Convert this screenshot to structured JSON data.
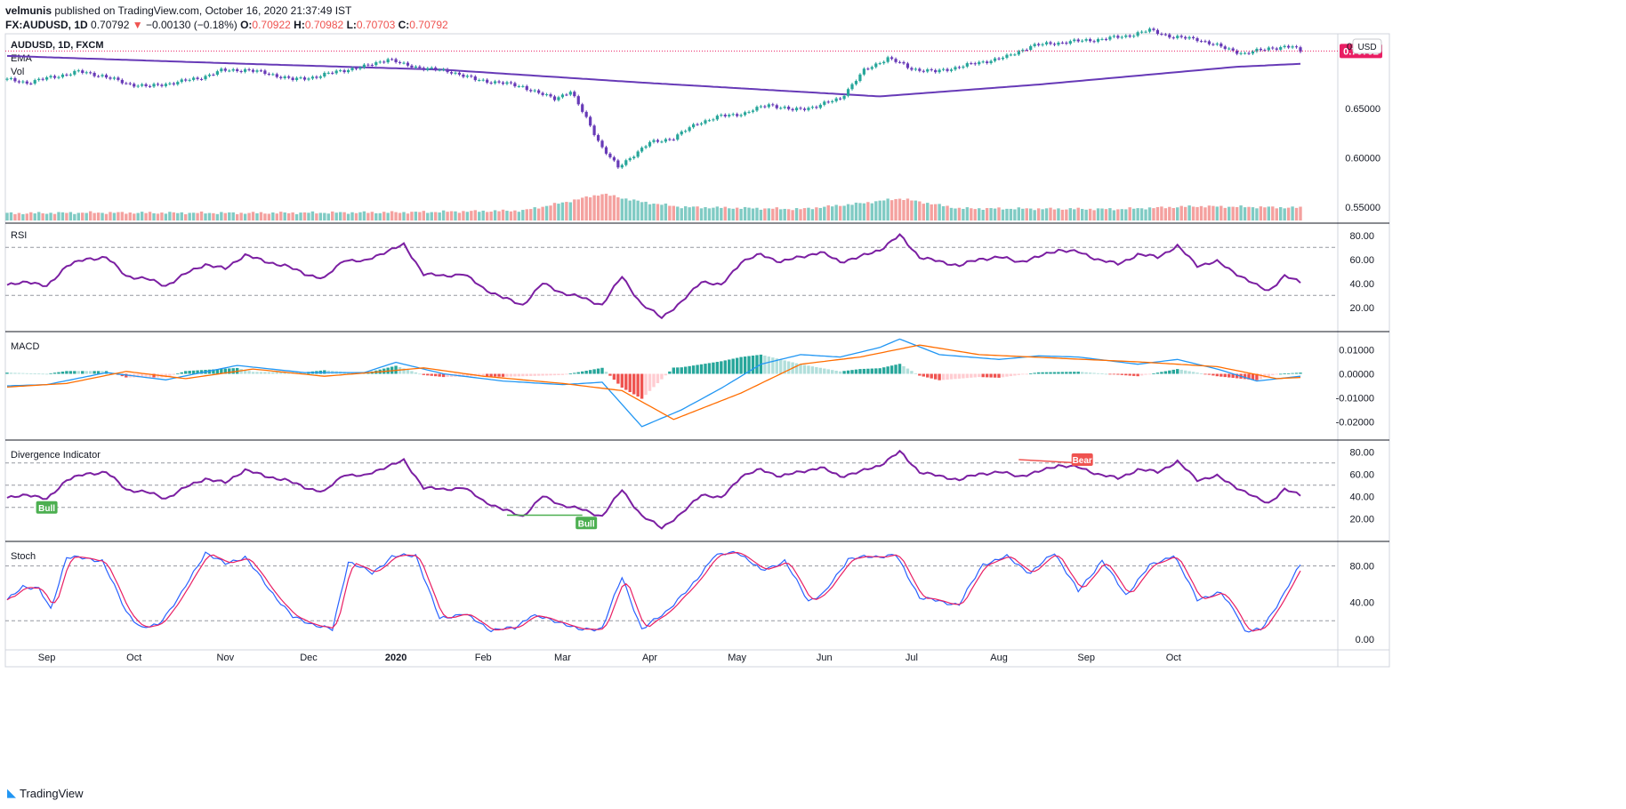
{
  "header": {
    "author": "velmunis",
    "published": "published on TradingView.com, October 16, 2020 21:37:49 IST",
    "symbol": "FX:AUDUSD, 1D",
    "price": "0.70792",
    "arrow": "▼",
    "change": "−0.00130 (−0.18%)",
    "o_label": "O:",
    "o_value": "0.70922",
    "h_label": "H:",
    "h_value": "0.70982",
    "l_label": "L:",
    "l_value": "0.70703",
    "c_label": "C:",
    "c_value": "0.70792"
  },
  "footer": {
    "brand": "TradingView"
  },
  "colors": {
    "up": "#26a69a",
    "down": "#ef5350",
    "ema": "#673ab7",
    "indicator": "#7b1fa2",
    "macd_line": "#2196f3",
    "signal_line": "#ff6d00",
    "stoch_k": "#2962ff",
    "stoch_d": "#e91e63",
    "last_price_bg": "#e91e63",
    "bull": "#4caf50",
    "bear": "#ef5350"
  },
  "chart_data": [
    {
      "type": "candlestick",
      "title": "AUDUSD, 1D, FXCM",
      "legend": [
        "EMA",
        "Vol"
      ],
      "currency": "USD",
      "last_price": "0.70792",
      "y_ticks": [
        "0.55000",
        "0.60000",
        "0.65000",
        "0.70792"
      ],
      "top_tick": "0",
      "ylim": [
        0.54,
        0.72
      ],
      "close_anchors": [
        [
          0,
          0.679
        ],
        [
          5,
          0.676
        ],
        [
          12,
          0.682
        ],
        [
          18,
          0.687
        ],
        [
          24,
          0.683
        ],
        [
          30,
          0.675
        ],
        [
          36,
          0.672
        ],
        [
          42,
          0.676
        ],
        [
          48,
          0.68
        ],
        [
          54,
          0.688
        ],
        [
          60,
          0.689
        ],
        [
          66,
          0.685
        ],
        [
          72,
          0.679
        ],
        [
          78,
          0.682
        ],
        [
          84,
          0.688
        ],
        [
          90,
          0.692
        ],
        [
          96,
          0.7
        ],
        [
          100,
          0.694
        ],
        [
          106,
          0.69
        ],
        [
          112,
          0.687
        ],
        [
          118,
          0.679
        ],
        [
          124,
          0.676
        ],
        [
          130,
          0.672
        ],
        [
          134,
          0.665
        ],
        [
          138,
          0.66
        ],
        [
          142,
          0.667
        ],
        [
          146,
          0.64
        ],
        [
          150,
          0.61
        ],
        [
          154,
          0.59
        ],
        [
          157,
          0.6
        ],
        [
          162,
          0.615
        ],
        [
          168,
          0.62
        ],
        [
          174,
          0.635
        ],
        [
          180,
          0.642
        ],
        [
          186,
          0.645
        ],
        [
          192,
          0.654
        ],
        [
          198,
          0.648
        ],
        [
          204,
          0.652
        ],
        [
          210,
          0.66
        ],
        [
          216,
          0.688
        ],
        [
          222,
          0.701
        ],
        [
          228,
          0.69
        ],
        [
          234,
          0.687
        ],
        [
          240,
          0.692
        ],
        [
          246,
          0.697
        ],
        [
          252,
          0.702
        ],
        [
          258,
          0.713
        ],
        [
          264,
          0.716
        ],
        [
          270,
          0.718
        ],
        [
          276,
          0.72
        ],
        [
          282,
          0.723
        ],
        [
          288,
          0.729
        ],
        [
          294,
          0.722
        ],
        [
          300,
          0.72
        ],
        [
          306,
          0.712
        ],
        [
          312,
          0.705
        ],
        [
          318,
          0.711
        ],
        [
          324,
          0.712
        ],
        [
          326,
          0.708
        ]
      ],
      "ema_anchors": [
        [
          0,
          0.703
        ],
        [
          60,
          0.695
        ],
        [
          110,
          0.689
        ],
        [
          160,
          0.676
        ],
        [
          220,
          0.662
        ],
        [
          260,
          0.674
        ],
        [
          310,
          0.692
        ],
        [
          326,
          0.695
        ]
      ],
      "volume_profile": [
        [
          0,
          0.2
        ],
        [
          20,
          0.22
        ],
        [
          60,
          0.21
        ],
        [
          100,
          0.23
        ],
        [
          130,
          0.28
        ],
        [
          140,
          0.5
        ],
        [
          150,
          0.75
        ],
        [
          160,
          0.52
        ],
        [
          170,
          0.38
        ],
        [
          200,
          0.32
        ],
        [
          215,
          0.48
        ],
        [
          225,
          0.62
        ],
        [
          240,
          0.34
        ],
        [
          280,
          0.32
        ],
        [
          300,
          0.4
        ],
        [
          326,
          0.36
        ]
      ]
    },
    {
      "type": "line",
      "title": "RSI",
      "y_ticks": [
        "80.00",
        "60.00",
        "40.00",
        "20.00"
      ],
      "levels": [
        70,
        30
      ],
      "ylim": [
        5,
        85
      ],
      "anchors": [
        [
          0,
          38
        ],
        [
          5,
          42
        ],
        [
          10,
          37
        ],
        [
          15,
          55
        ],
        [
          20,
          60
        ],
        [
          25,
          62
        ],
        [
          30,
          46
        ],
        [
          35,
          44
        ],
        [
          40,
          38
        ],
        [
          45,
          48
        ],
        [
          50,
          56
        ],
        [
          55,
          52
        ],
        [
          60,
          64
        ],
        [
          65,
          58
        ],
        [
          70,
          55
        ],
        [
          75,
          48
        ],
        [
          80,
          44
        ],
        [
          85,
          60
        ],
        [
          90,
          58
        ],
        [
          95,
          66
        ],
        [
          100,
          72
        ],
        [
          105,
          48
        ],
        [
          110,
          46
        ],
        [
          115,
          48
        ],
        [
          120,
          36
        ],
        [
          125,
          28
        ],
        [
          130,
          22
        ],
        [
          135,
          40
        ],
        [
          140,
          32
        ],
        [
          145,
          28
        ],
        [
          150,
          22
        ],
        [
          155,
          46
        ],
        [
          160,
          22
        ],
        [
          165,
          12
        ],
        [
          170,
          24
        ],
        [
          175,
          42
        ],
        [
          180,
          38
        ],
        [
          185,
          58
        ],
        [
          190,
          64
        ],
        [
          195,
          58
        ],
        [
          200,
          62
        ],
        [
          205,
          66
        ],
        [
          210,
          58
        ],
        [
          215,
          62
        ],
        [
          220,
          68
        ],
        [
          225,
          80
        ],
        [
          230,
          62
        ],
        [
          235,
          58
        ],
        [
          240,
          55
        ],
        [
          245,
          60
        ],
        [
          250,
          62
        ],
        [
          255,
          58
        ],
        [
          260,
          62
        ],
        [
          265,
          68
        ],
        [
          270,
          66
        ],
        [
          275,
          60
        ],
        [
          280,
          56
        ],
        [
          285,
          64
        ],
        [
          290,
          62
        ],
        [
          295,
          71
        ],
        [
          300,
          55
        ],
        [
          305,
          58
        ],
        [
          310,
          48
        ],
        [
          315,
          38
        ],
        [
          318,
          34
        ],
        [
          322,
          46
        ],
        [
          326,
          41
        ]
      ]
    },
    {
      "type": "line+bar",
      "title": "MACD",
      "y_ticks": [
        "0.01000",
        "0.00000",
        "-0.01000",
        "-0.02000"
      ],
      "ylim": [
        -0.025,
        0.015
      ],
      "macd_anchors": [
        [
          0,
          -0.005
        ],
        [
          10,
          -0.0045
        ],
        [
          25,
          0.0005
        ],
        [
          40,
          -0.0025
        ],
        [
          58,
          0.0035
        ],
        [
          75,
          0.0005
        ],
        [
          90,
          0.0005
        ],
        [
          98,
          0.0048
        ],
        [
          110,
          0.0
        ],
        [
          125,
          -0.003
        ],
        [
          140,
          -0.0045
        ],
        [
          150,
          -0.0035
        ],
        [
          160,
          -0.022
        ],
        [
          170,
          -0.015
        ],
        [
          180,
          -0.006
        ],
        [
          190,
          0.004
        ],
        [
          200,
          0.008
        ],
        [
          210,
          0.007
        ],
        [
          220,
          0.011
        ],
        [
          225,
          0.0145
        ],
        [
          235,
          0.008
        ],
        [
          250,
          0.006
        ],
        [
          260,
          0.0075
        ],
        [
          270,
          0.007
        ],
        [
          285,
          0.004
        ],
        [
          295,
          0.006
        ],
        [
          305,
          0.002
        ],
        [
          315,
          -0.003
        ],
        [
          326,
          -0.001
        ]
      ],
      "signal_anchors": [
        [
          0,
          -0.0055
        ],
        [
          15,
          -0.004
        ],
        [
          30,
          0.001
        ],
        [
          45,
          -0.002
        ],
        [
          62,
          0.002
        ],
        [
          80,
          -0.001
        ],
        [
          95,
          0.001
        ],
        [
          105,
          0.0025
        ],
        [
          120,
          -0.001
        ],
        [
          140,
          -0.004
        ],
        [
          155,
          -0.007
        ],
        [
          168,
          -0.019
        ],
        [
          185,
          -0.008
        ],
        [
          200,
          0.004
        ],
        [
          215,
          0.007
        ],
        [
          230,
          0.012
        ],
        [
          245,
          0.008
        ],
        [
          265,
          0.0065
        ],
        [
          285,
          0.005
        ],
        [
          305,
          0.003
        ],
        [
          320,
          -0.002
        ],
        [
          326,
          -0.0015
        ]
      ]
    },
    {
      "type": "line",
      "title": "Divergence Indicator",
      "y_ticks": [
        "80.00",
        "60.00",
        "40.00",
        "20.00"
      ],
      "levels": [
        70,
        50,
        30
      ],
      "ylim": [
        5,
        85
      ],
      "labels": [
        {
          "text": "Bull",
          "kind": "bull",
          "i": 10,
          "v": 30
        },
        {
          "text": "Bull",
          "kind": "bull",
          "i": 146,
          "v": 16
        },
        {
          "text": "Bear",
          "kind": "bear",
          "i": 271,
          "v": 73
        }
      ],
      "divergence_lines": [
        {
          "kind": "bull",
          "from": [
            126,
            23
          ],
          "to": [
            145,
            23
          ]
        },
        {
          "kind": "bear",
          "from": [
            255,
            73
          ],
          "to": [
            270,
            70
          ]
        }
      ]
    },
    {
      "type": "line",
      "title": "Stoch",
      "y_ticks": [
        "80.00",
        "40.00",
        "0.00"
      ],
      "levels": [
        80,
        20
      ],
      "ylim": [
        -5,
        100
      ],
      "k_anchors": [
        [
          0,
          42
        ],
        [
          4,
          58
        ],
        [
          8,
          55
        ],
        [
          11,
          32
        ],
        [
          15,
          90
        ],
        [
          24,
          86
        ],
        [
          30,
          30
        ],
        [
          34,
          12
        ],
        [
          38,
          15
        ],
        [
          44,
          50
        ],
        [
          50,
          95
        ],
        [
          55,
          82
        ],
        [
          60,
          90
        ],
        [
          66,
          55
        ],
        [
          72,
          24
        ],
        [
          78,
          15
        ],
        [
          82,
          10
        ],
        [
          86,
          85
        ],
        [
          92,
          72
        ],
        [
          97,
          90
        ],
        [
          103,
          92
        ],
        [
          109,
          22
        ],
        [
          115,
          28
        ],
        [
          122,
          10
        ],
        [
          128,
          12
        ],
        [
          132,
          26
        ],
        [
          140,
          18
        ],
        [
          144,
          10
        ],
        [
          150,
          12
        ],
        [
          155,
          68
        ],
        [
          160,
          10
        ],
        [
          166,
          30
        ],
        [
          172,
          55
        ],
        [
          178,
          90
        ],
        [
          184,
          96
        ],
        [
          190,
          75
        ],
        [
          196,
          85
        ],
        [
          202,
          42
        ],
        [
          206,
          50
        ],
        [
          212,
          88
        ],
        [
          218,
          90
        ],
        [
          224,
          92
        ],
        [
          230,
          46
        ],
        [
          236,
          40
        ],
        [
          240,
          38
        ],
        [
          246,
          82
        ],
        [
          252,
          90
        ],
        [
          258,
          72
        ],
        [
          264,
          95
        ],
        [
          270,
          52
        ],
        [
          276,
          86
        ],
        [
          282,
          48
        ],
        [
          288,
          80
        ],
        [
          294,
          92
        ],
        [
          300,
          44
        ],
        [
          306,
          50
        ],
        [
          310,
          28
        ],
        [
          312,
          8
        ],
        [
          316,
          10
        ],
        [
          322,
          50
        ],
        [
          326,
          82
        ],
        [
          330,
          38
        ]
      ],
      "d_lag": 2
    }
  ],
  "x_ticks": [
    {
      "label": "Sep",
      "i": 10
    },
    {
      "label": "Oct",
      "i": 32
    },
    {
      "label": "Nov",
      "i": 55
    },
    {
      "label": "Dec",
      "i": 76
    },
    {
      "label": "2020",
      "i": 98
    },
    {
      "label": "Feb",
      "i": 120
    },
    {
      "label": "Mar",
      "i": 140
    },
    {
      "label": "Apr",
      "i": 162
    },
    {
      "label": "May",
      "i": 184
    },
    {
      "label": "Jun",
      "i": 206
    },
    {
      "label": "Jul",
      "i": 228
    },
    {
      "label": "Aug",
      "i": 250
    },
    {
      "label": "Sep",
      "i": 272
    },
    {
      "label": "Oct",
      "i": 294
    }
  ]
}
